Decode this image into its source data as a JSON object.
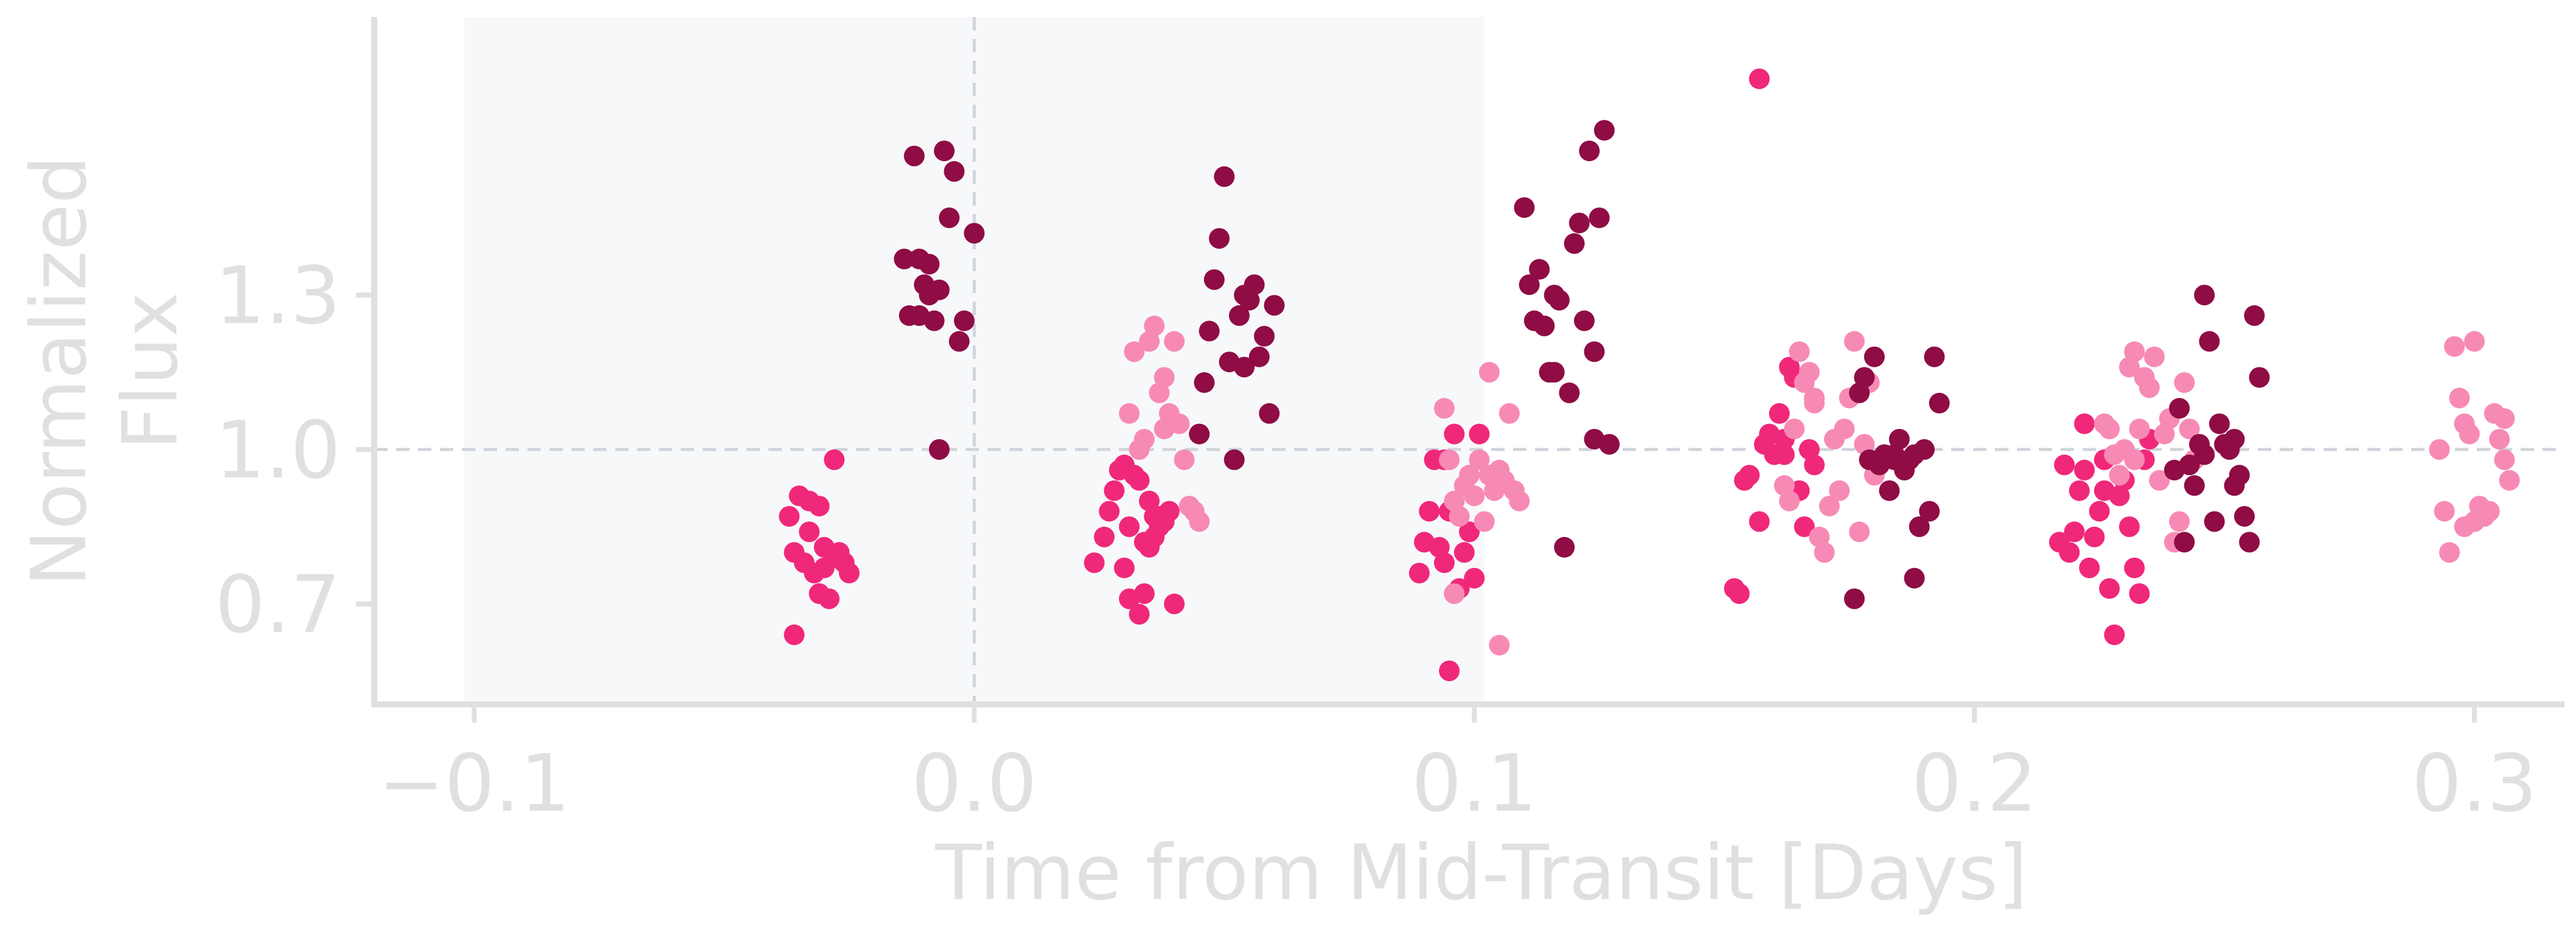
{
  "chart_data": {
    "type": "scatter",
    "title": "",
    "xlabel": "Time from Mid-Transit [Days]",
    "ylabel_lines": [
      "Normalized",
      "Flux"
    ],
    "xlim": [
      -0.12,
      0.318
    ],
    "ylim": [
      0.505,
      1.84
    ],
    "xticks": [
      -0.1,
      0.0,
      0.1,
      0.2,
      0.3
    ],
    "xtick_labels": [
      "−0.1",
      "0.0",
      "0.1",
      "0.2",
      "0.3"
    ],
    "yticks": [
      0.7,
      1.0,
      1.3
    ],
    "ytick_labels": [
      "0.7",
      "1.0",
      "1.3"
    ],
    "grid": false,
    "reference_lines": {
      "x": 0.0,
      "y": 1.0
    },
    "shaded_region": {
      "x0": -0.102,
      "x1": 0.102
    },
    "colors": {
      "axis": "#e0e0e0",
      "text": "#e0e0e0",
      "reference_line": "#d0d4dc",
      "shade": "#f7f8fa"
    },
    "series": [
      {
        "color": "#f0287a",
        "points": [
          [
            -0.037,
            0.87
          ],
          [
            -0.035,
            0.91
          ],
          [
            -0.033,
            0.9
          ],
          [
            -0.031,
            0.89
          ],
          [
            -0.036,
            0.8
          ],
          [
            -0.034,
            0.78
          ],
          [
            -0.032,
            0.76
          ],
          [
            -0.03,
            0.81
          ],
          [
            -0.028,
            0.79
          ],
          [
            -0.027,
            0.8
          ],
          [
            -0.026,
            0.78
          ],
          [
            -0.025,
            0.76
          ],
          [
            -0.031,
            0.72
          ],
          [
            -0.029,
            0.71
          ],
          [
            -0.036,
            0.64
          ],
          [
            -0.028,
            0.98
          ],
          [
            -0.033,
            0.84
          ],
          [
            -0.03,
            0.77
          ],
          [
            0.024,
            0.78
          ],
          [
            0.026,
            0.83
          ],
          [
            0.027,
            0.88
          ],
          [
            0.028,
            0.92
          ],
          [
            0.029,
            0.96
          ],
          [
            0.03,
            0.77
          ],
          [
            0.031,
            0.71
          ],
          [
            0.032,
            0.95
          ],
          [
            0.033,
            0.94
          ],
          [
            0.034,
            0.82
          ],
          [
            0.035,
            0.9
          ],
          [
            0.036,
            0.87
          ],
          [
            0.037,
            0.85
          ],
          [
            0.038,
            0.86
          ],
          [
            0.039,
            0.88
          ],
          [
            0.04,
            0.7
          ],
          [
            0.033,
            0.68
          ],
          [
            0.034,
            0.72
          ],
          [
            0.035,
            0.81
          ],
          [
            0.036,
            0.83
          ],
          [
            0.037,
            0.87
          ],
          [
            0.03,
            0.97
          ],
          [
            0.031,
            0.85
          ],
          [
            0.089,
            0.76
          ],
          [
            0.09,
            0.82
          ],
          [
            0.091,
            0.88
          ],
          [
            0.092,
            0.98
          ],
          [
            0.093,
            0.81
          ],
          [
            0.094,
            0.78
          ],
          [
            0.095,
            0.88
          ],
          [
            0.096,
            0.72
          ],
          [
            0.097,
            0.73
          ],
          [
            0.098,
            0.8
          ],
          [
            0.099,
            0.84
          ],
          [
            0.1,
            0.75
          ],
          [
            0.101,
            1.03
          ],
          [
            0.096,
            1.03
          ],
          [
            0.095,
            0.57
          ],
          [
            0.094,
            0.98
          ],
          [
            0.152,
            0.73
          ],
          [
            0.153,
            0.72
          ],
          [
            0.154,
            0.94
          ],
          [
            0.155,
            0.95
          ],
          [
            0.157,
            0.86
          ],
          [
            0.158,
            1.01
          ],
          [
            0.159,
            1.03
          ],
          [
            0.16,
            0.99
          ],
          [
            0.161,
            1.07
          ],
          [
            0.162,
            1.02
          ],
          [
            0.163,
            1.16
          ],
          [
            0.164,
            1.14
          ],
          [
            0.165,
            0.92
          ],
          [
            0.166,
            0.85
          ],
          [
            0.167,
            1.0
          ],
          [
            0.168,
            0.97
          ],
          [
            0.157,
            1.72
          ],
          [
            0.162,
            0.99
          ],
          [
            0.217,
            0.82
          ],
          [
            0.218,
            0.97
          ],
          [
            0.219,
            0.8
          ],
          [
            0.22,
            0.84
          ],
          [
            0.221,
            0.92
          ],
          [
            0.222,
            0.96
          ],
          [
            0.223,
            0.77
          ],
          [
            0.224,
            0.83
          ],
          [
            0.225,
            0.88
          ],
          [
            0.226,
            0.98
          ],
          [
            0.227,
            0.73
          ],
          [
            0.228,
            0.64
          ],
          [
            0.229,
            0.91
          ],
          [
            0.23,
            0.94
          ],
          [
            0.231,
            0.85
          ],
          [
            0.232,
            0.77
          ],
          [
            0.233,
            0.72
          ],
          [
            0.234,
            0.98
          ],
          [
            0.235,
            1.02
          ],
          [
            0.222,
            1.05
          ],
          [
            0.226,
            0.92
          ]
        ]
      },
      {
        "color": "#f78ab5",
        "points": [
          [
            0.031,
            1.07
          ],
          [
            0.032,
            1.19
          ],
          [
            0.033,
            1.0
          ],
          [
            0.034,
            1.02
          ],
          [
            0.035,
            1.21
          ],
          [
            0.036,
            1.24
          ],
          [
            0.037,
            1.11
          ],
          [
            0.038,
            1.14
          ],
          [
            0.039,
            1.07
          ],
          [
            0.04,
            1.21
          ],
          [
            0.041,
            1.05
          ],
          [
            0.042,
            0.98
          ],
          [
            0.043,
            0.89
          ],
          [
            0.044,
            0.88
          ],
          [
            0.045,
            0.86
          ],
          [
            0.038,
            1.04
          ],
          [
            0.094,
            1.08
          ],
          [
            0.095,
            0.98
          ],
          [
            0.096,
            0.9
          ],
          [
            0.097,
            0.87
          ],
          [
            0.098,
            0.93
          ],
          [
            0.099,
            0.95
          ],
          [
            0.1,
            0.91
          ],
          [
            0.101,
            0.98
          ],
          [
            0.102,
            0.86
          ],
          [
            0.103,
            0.95
          ],
          [
            0.104,
            0.92
          ],
          [
            0.105,
            0.96
          ],
          [
            0.106,
            0.94
          ],
          [
            0.107,
            1.07
          ],
          [
            0.108,
            0.92
          ],
          [
            0.109,
            0.9
          ],
          [
            0.103,
            1.15
          ],
          [
            0.105,
            0.62
          ],
          [
            0.096,
            0.72
          ],
          [
            0.162,
            0.93
          ],
          [
            0.163,
            0.9
          ],
          [
            0.164,
            1.04
          ],
          [
            0.165,
            1.19
          ],
          [
            0.166,
            1.13
          ],
          [
            0.167,
            1.15
          ],
          [
            0.168,
            1.09
          ],
          [
            0.169,
            0.83
          ],
          [
            0.17,
            0.8
          ],
          [
            0.171,
            0.89
          ],
          [
            0.172,
            1.02
          ],
          [
            0.173,
            0.92
          ],
          [
            0.174,
            1.04
          ],
          [
            0.175,
            1.1
          ],
          [
            0.176,
            1.21
          ],
          [
            0.177,
            0.84
          ],
          [
            0.178,
            1.01
          ],
          [
            0.179,
            1.13
          ],
          [
            0.18,
            0.95
          ],
          [
            0.168,
            1.1
          ],
          [
            0.226,
            1.05
          ],
          [
            0.227,
            1.04
          ],
          [
            0.228,
            0.99
          ],
          [
            0.229,
            0.95
          ],
          [
            0.23,
            1.0
          ],
          [
            0.231,
            1.16
          ],
          [
            0.232,
            1.19
          ],
          [
            0.233,
            1.04
          ],
          [
            0.234,
            1.14
          ],
          [
            0.235,
            1.12
          ],
          [
            0.236,
            1.18
          ],
          [
            0.237,
            0.94
          ],
          [
            0.238,
            1.03
          ],
          [
            0.239,
            1.06
          ],
          [
            0.24,
            0.82
          ],
          [
            0.241,
            0.86
          ],
          [
            0.242,
            1.13
          ],
          [
            0.243,
            1.04
          ],
          [
            0.244,
            0.98
          ],
          [
            0.232,
            0.98
          ],
          [
            0.293,
            1.0
          ],
          [
            0.294,
            0.88
          ],
          [
            0.295,
            0.8
          ],
          [
            0.296,
            1.2
          ],
          [
            0.297,
            1.1
          ],
          [
            0.298,
            1.05
          ],
          [
            0.299,
            1.03
          ],
          [
            0.3,
            0.86
          ],
          [
            0.301,
            0.89
          ],
          [
            0.302,
            0.87
          ],
          [
            0.303,
            0.88
          ],
          [
            0.304,
            1.07
          ],
          [
            0.305,
            1.02
          ],
          [
            0.306,
            0.98
          ],
          [
            0.307,
            0.94
          ],
          [
            0.3,
            1.21
          ],
          [
            0.298,
            0.85
          ],
          [
            0.306,
            1.06
          ]
        ]
      },
      {
        "color": "#8f0c45",
        "points": [
          [
            -0.014,
            1.37
          ],
          [
            -0.013,
            1.26
          ],
          [
            -0.012,
            1.57
          ],
          [
            -0.011,
            1.37
          ],
          [
            -0.01,
            1.32
          ],
          [
            -0.009,
            1.36
          ],
          [
            -0.008,
            1.25
          ],
          [
            -0.007,
            1.31
          ],
          [
            -0.006,
            1.58
          ],
          [
            -0.005,
            1.45
          ],
          [
            -0.004,
            1.54
          ],
          [
            -0.003,
            1.21
          ],
          [
            -0.002,
            1.25
          ],
          [
            0.0,
            1.42
          ],
          [
            -0.007,
            1.0
          ],
          [
            -0.011,
            1.26
          ],
          [
            -0.009,
            1.3
          ],
          [
            0.045,
            1.03
          ],
          [
            0.046,
            1.13
          ],
          [
            0.047,
            1.23
          ],
          [
            0.048,
            1.33
          ],
          [
            0.049,
            1.41
          ],
          [
            0.05,
            1.53
          ],
          [
            0.051,
            1.17
          ],
          [
            0.052,
            0.98
          ],
          [
            0.053,
            1.26
          ],
          [
            0.054,
            1.16
          ],
          [
            0.055,
            1.29
          ],
          [
            0.056,
            1.32
          ],
          [
            0.057,
            1.18
          ],
          [
            0.058,
            1.22
          ],
          [
            0.059,
            1.07
          ],
          [
            0.06,
            1.28
          ],
          [
            0.054,
            1.3
          ],
          [
            0.11,
            1.47
          ],
          [
            0.111,
            1.32
          ],
          [
            0.112,
            1.25
          ],
          [
            0.113,
            1.35
          ],
          [
            0.114,
            1.24
          ],
          [
            0.115,
            1.15
          ],
          [
            0.116,
            1.15
          ],
          [
            0.117,
            1.29
          ],
          [
            0.118,
            0.81
          ],
          [
            0.119,
            1.11
          ],
          [
            0.12,
            1.4
          ],
          [
            0.121,
            1.44
          ],
          [
            0.122,
            1.25
          ],
          [
            0.123,
            1.58
          ],
          [
            0.124,
            1.19
          ],
          [
            0.125,
            1.45
          ],
          [
            0.126,
            1.62
          ],
          [
            0.127,
            1.01
          ],
          [
            0.124,
            1.02
          ],
          [
            0.116,
            1.3
          ],
          [
            0.176,
            0.71
          ],
          [
            0.177,
            1.11
          ],
          [
            0.178,
            1.14
          ],
          [
            0.179,
            0.98
          ],
          [
            0.18,
            1.18
          ],
          [
            0.181,
            0.97
          ],
          [
            0.182,
            0.99
          ],
          [
            0.183,
            0.92
          ],
          [
            0.184,
            0.99
          ],
          [
            0.185,
            1.02
          ],
          [
            0.186,
            0.96
          ],
          [
            0.187,
            0.98
          ],
          [
            0.188,
            0.75
          ],
          [
            0.189,
            0.85
          ],
          [
            0.19,
            1.0
          ],
          [
            0.191,
            0.88
          ],
          [
            0.192,
            1.18
          ],
          [
            0.193,
            1.09
          ],
          [
            0.184,
            0.98
          ],
          [
            0.188,
            0.99
          ],
          [
            0.24,
            0.96
          ],
          [
            0.241,
            1.08
          ],
          [
            0.242,
            0.82
          ],
          [
            0.243,
            0.97
          ],
          [
            0.244,
            0.93
          ],
          [
            0.245,
            1.01
          ],
          [
            0.246,
            1.3
          ],
          [
            0.247,
            1.21
          ],
          [
            0.248,
            0.86
          ],
          [
            0.249,
            1.05
          ],
          [
            0.25,
            1.01
          ],
          [
            0.251,
            1.0
          ],
          [
            0.252,
            0.93
          ],
          [
            0.253,
            0.95
          ],
          [
            0.254,
            0.87
          ],
          [
            0.255,
            0.82
          ],
          [
            0.256,
            1.26
          ],
          [
            0.257,
            1.14
          ],
          [
            0.246,
            0.99
          ],
          [
            0.252,
            1.02
          ]
        ]
      }
    ]
  }
}
